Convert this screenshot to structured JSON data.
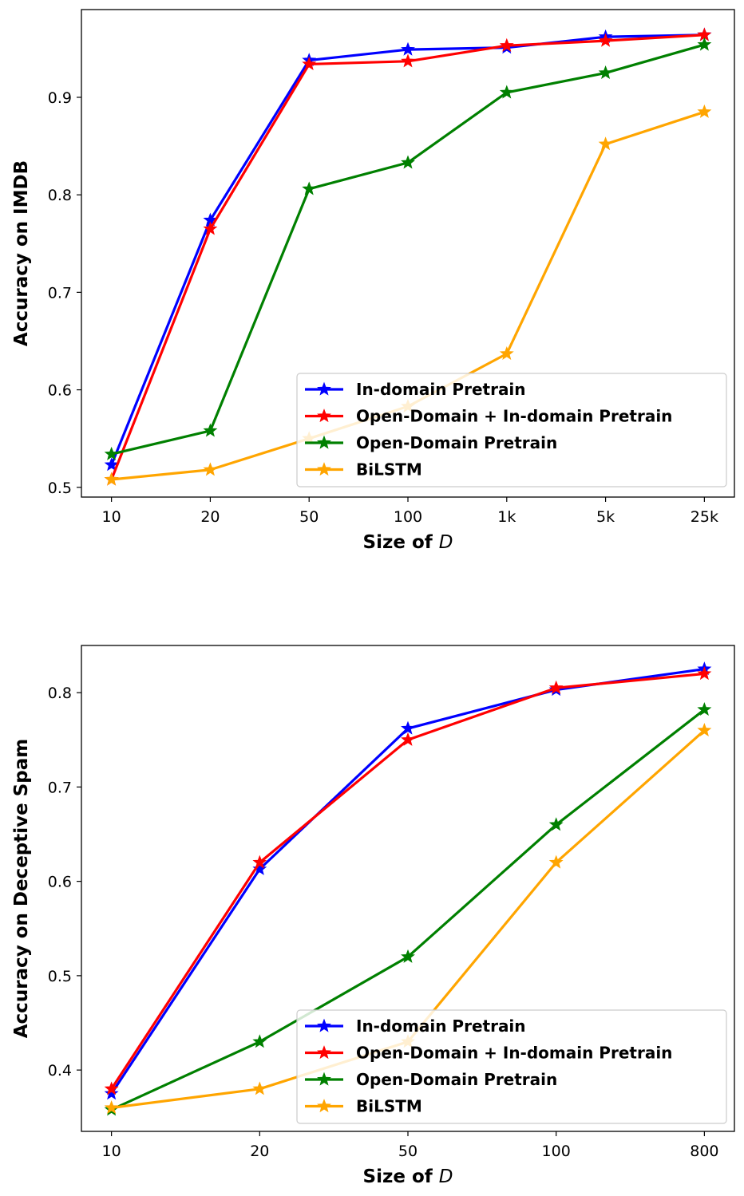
{
  "chart_data": [
    {
      "type": "line",
      "title": "",
      "xlabel_prefix": "Size of ",
      "xlabel_var": "D",
      "ylabel": "Accuracy on IMDB",
      "categories": [
        "10",
        "20",
        "50",
        "100",
        "1k",
        "5k",
        "25k"
      ],
      "yticks": [
        "0.5",
        "0.6",
        "0.7",
        "0.8",
        "0.9"
      ],
      "ytick_values": [
        0.5,
        0.6,
        0.7,
        0.8,
        0.9
      ],
      "ylim": [
        0.49,
        0.99
      ],
      "legend_position": "lower-right",
      "series": [
        {
          "name": "In-domain Pretrain",
          "color": "#0000ff",
          "values": [
            0.523,
            0.774,
            0.938,
            0.949,
            0.951,
            0.962,
            0.964
          ]
        },
        {
          "name": "Open-Domain + In-domain Pretrain",
          "color": "#ff0000",
          "values": [
            0.508,
            0.765,
            0.934,
            0.937,
            0.953,
            0.958,
            0.964
          ]
        },
        {
          "name": "Open-Domain Pretrain",
          "color": "#008000",
          "values": [
            0.534,
            0.558,
            0.806,
            0.833,
            0.905,
            0.925,
            0.954
          ]
        },
        {
          "name": "BiLSTM",
          "color": "#ffa500",
          "values": [
            0.508,
            0.518,
            0.55,
            0.583,
            0.637,
            0.852,
            0.885
          ]
        }
      ]
    },
    {
      "type": "line",
      "title": "",
      "xlabel_prefix": "Size of ",
      "xlabel_var": "D",
      "ylabel": "Accuracy on Deceptive Spam",
      "categories": [
        "10",
        "20",
        "50",
        "100",
        "800"
      ],
      "yticks": [
        "0.4",
        "0.5",
        "0.6",
        "0.7",
        "0.8"
      ],
      "ytick_values": [
        0.4,
        0.5,
        0.6,
        0.7,
        0.8
      ],
      "ylim": [
        0.335,
        0.85
      ],
      "legend_position": "lower-right",
      "series": [
        {
          "name": "In-domain Pretrain",
          "color": "#0000ff",
          "values": [
            0.375,
            0.613,
            0.762,
            0.803,
            0.825
          ]
        },
        {
          "name": "Open-Domain + In-domain Pretrain",
          "color": "#ff0000",
          "values": [
            0.38,
            0.62,
            0.75,
            0.805,
            0.82
          ]
        },
        {
          "name": "Open-Domain Pretrain",
          "color": "#008000",
          "values": [
            0.358,
            0.43,
            0.52,
            0.66,
            0.782
          ]
        },
        {
          "name": "BiLSTM",
          "color": "#ffa500",
          "values": [
            0.36,
            0.38,
            0.43,
            0.62,
            0.76
          ]
        }
      ]
    }
  ]
}
